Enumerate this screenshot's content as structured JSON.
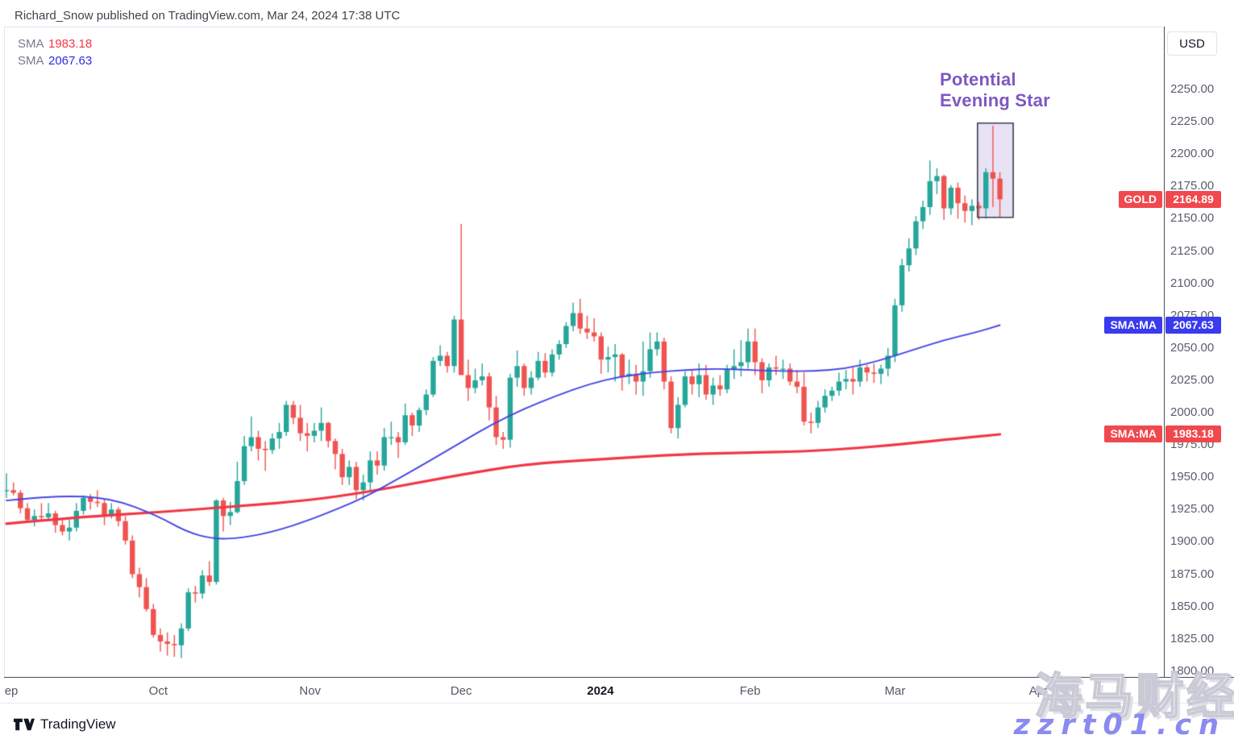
{
  "header": {
    "attribution": "Richard_Snow published on TradingView.com, Mar 24, 2024 17:38 UTC"
  },
  "legend": {
    "rows": [
      {
        "label": "SMA",
        "value": "1983.18",
        "color": "#f23645"
      },
      {
        "label": "SMA",
        "value": "2067.63",
        "color": "#2c2ce0"
      }
    ]
  },
  "annotation": {
    "line1": "Potential",
    "line2": "Evening Star",
    "color": "#7e57c2"
  },
  "price_axis": {
    "currency_button": "USD"
  },
  "price_labels": {
    "items": [
      {
        "id": "gold",
        "name": "GOLD",
        "value": "2164.89",
        "color": "#f0484d"
      },
      {
        "id": "sma-blue",
        "name": "SMA:MA",
        "value": "2067.63",
        "color": "#3a3aee"
      },
      {
        "id": "sma-red",
        "name": "SMA:MA",
        "value": "1983.18",
        "color": "#f0484d"
      }
    ]
  },
  "watermark": {
    "line1": "海马财经",
    "line2": "zzrt01.cn"
  },
  "footer": {
    "brand": "TradingView"
  },
  "chart_data": {
    "type": "candlestick",
    "symbol": "GOLD",
    "currency": "USD",
    "current_price": 2164.89,
    "colors": {
      "up": "#26a69a",
      "down": "#ef5350",
      "sma_red": "#f23645",
      "sma_blue": "#4545e5"
    },
    "y_axis": {
      "min": 1795,
      "max": 2299,
      "tick_step": 25,
      "ticks": [
        "2250.00",
        "2225.00",
        "2200.00",
        "2175.00",
        "2150.00",
        "2125.00",
        "2100.00",
        "2075.00",
        "2050.00",
        "2025.00",
        "2000.00",
        "1975.00",
        "1950.00",
        "1925.00",
        "1900.00",
        "1875.00",
        "1850.00",
        "1825.00",
        "1800.00"
      ]
    },
    "x_axis": {
      "labels": [
        {
          "text": "ep",
          "index": 0.7,
          "bold": false
        },
        {
          "text": "Oct",
          "index": 21.7,
          "bold": false
        },
        {
          "text": "Nov",
          "index": 43.4,
          "bold": false
        },
        {
          "text": "Dec",
          "index": 65.0,
          "bold": false
        },
        {
          "text": "2024",
          "index": 84.9,
          "bold": true
        },
        {
          "text": "Feb",
          "index": 106.3,
          "bold": false
        },
        {
          "text": "Mar",
          "index": 127.0,
          "bold": false
        },
        {
          "text": "Apr",
          "index": 147.5,
          "bold": false
        }
      ]
    },
    "highlight_box": {
      "start_index": 138.8,
      "end_index": 143.9,
      "price_low": 2151,
      "price_high": 2224,
      "fill": "rgba(103,58,183,0.15)",
      "border": "#3a3f4c",
      "label": "Potential Evening Star"
    },
    "overlays": [
      {
        "name": "SMA",
        "value": 1983.18,
        "color": "#f23645",
        "width": 3.2,
        "points": [
          [
            0,
            1914
          ],
          [
            10,
            1919
          ],
          [
            22,
            1923
          ],
          [
            34,
            1928
          ],
          [
            43,
            1932
          ],
          [
            51,
            1938
          ],
          [
            59,
            1946
          ],
          [
            65,
            1952
          ],
          [
            74,
            1960
          ],
          [
            85,
            1964
          ],
          [
            97,
            1968
          ],
          [
            106,
            1969
          ],
          [
            114,
            1970
          ],
          [
            120,
            1972
          ],
          [
            127,
            1975
          ],
          [
            134,
            1979
          ],
          [
            142,
            1983.18
          ]
        ]
      },
      {
        "name": "SMA",
        "value": 2067.63,
        "color": "#4545e5",
        "width": 1.9,
        "points": [
          [
            0,
            1932
          ],
          [
            7,
            1936
          ],
          [
            15,
            1934
          ],
          [
            21.7,
            1920
          ],
          [
            25.6,
            1908
          ],
          [
            29.6,
            1902
          ],
          [
            33.6,
            1903
          ],
          [
            38.3,
            1908
          ],
          [
            43.4,
            1917
          ],
          [
            47.5,
            1926
          ],
          [
            51,
            1934
          ],
          [
            54.4,
            1944
          ],
          [
            59,
            1958
          ],
          [
            65,
            1977
          ],
          [
            69.4,
            1991
          ],
          [
            74,
            2003
          ],
          [
            78.6,
            2013
          ],
          [
            83.2,
            2022
          ],
          [
            87.8,
            2028
          ],
          [
            92.4,
            2031
          ],
          [
            97,
            2033
          ],
          [
            101.6,
            2034
          ],
          [
            106.2,
            2033
          ],
          [
            110.8,
            2032
          ],
          [
            115.4,
            2032
          ],
          [
            120,
            2034
          ],
          [
            124.7,
            2040
          ],
          [
            129.3,
            2048
          ],
          [
            133.9,
            2056
          ],
          [
            138.5,
            2062
          ],
          [
            142,
            2067.63
          ]
        ]
      }
    ],
    "candles": [
      [
        "09-01",
        1940,
        1953,
        1934,
        1940
      ],
      [
        "09-04",
        1940,
        1946,
        1936,
        1938
      ],
      [
        "09-05",
        1938,
        1940,
        1922,
        1926
      ],
      [
        "09-06",
        1926,
        1930,
        1915,
        1917
      ],
      [
        "09-07",
        1917,
        1925,
        1912,
        1920
      ],
      [
        "09-08",
        1920,
        1930,
        1917,
        1919
      ],
      [
        "09-11",
        1919,
        1930,
        1916,
        1922
      ],
      [
        "09-12",
        1922,
        1924,
        1907,
        1913
      ],
      [
        "09-13",
        1913,
        1918,
        1905,
        1908
      ],
      [
        "09-14",
        1908,
        1917,
        1901,
        1911
      ],
      [
        "09-15",
        1911,
        1930,
        1908,
        1924
      ],
      [
        "09-18",
        1924,
        1936,
        1921,
        1934
      ],
      [
        "09-19",
        1934,
        1937,
        1925,
        1931
      ],
      [
        "09-20",
        1931,
        1940,
        1927,
        1930
      ],
      [
        "09-21",
        1930,
        1933,
        1913,
        1920
      ],
      [
        "09-22",
        1920,
        1930,
        1918,
        1925
      ],
      [
        "09-25",
        1925,
        1927,
        1912,
        1916
      ],
      [
        "09-26",
        1916,
        1920,
        1898,
        1901
      ],
      [
        "09-27",
        1901,
        1905,
        1872,
        1875
      ],
      [
        "09-28",
        1875,
        1880,
        1857,
        1865
      ],
      [
        "09-29",
        1865,
        1872,
        1846,
        1848
      ],
      [
        "10-02",
        1848,
        1852,
        1826,
        1828
      ],
      [
        "10-03",
        1828,
        1833,
        1815,
        1823
      ],
      [
        "10-04",
        1823,
        1830,
        1812,
        1821
      ],
      [
        "10-05",
        1821,
        1828,
        1811,
        1820
      ],
      [
        "10-06",
        1820,
        1837,
        1810,
        1833
      ],
      [
        "10-09",
        1833,
        1864,
        1831,
        1861
      ],
      [
        "10-10",
        1861,
        1866,
        1853,
        1860
      ],
      [
        "10-11",
        1860,
        1878,
        1856,
        1874
      ],
      [
        "10-12",
        1874,
        1885,
        1866,
        1869
      ],
      [
        "10-13",
        1869,
        1933,
        1867,
        1932
      ],
      [
        "10-16",
        1932,
        1934,
        1908,
        1920
      ],
      [
        "10-17",
        1920,
        1931,
        1913,
        1923
      ],
      [
        "10-18",
        1923,
        1962,
        1922,
        1947
      ],
      [
        "10-19",
        1947,
        1982,
        1944,
        1974
      ],
      [
        "10-20",
        1974,
        1997,
        1970,
        1981
      ],
      [
        "10-23",
        1981,
        1986,
        1963,
        1972
      ],
      [
        "10-24",
        1972,
        1978,
        1955,
        1971
      ],
      [
        "10-25",
        1971,
        1984,
        1968,
        1980
      ],
      [
        "10-26",
        1980,
        1992,
        1972,
        1985
      ],
      [
        "10-27",
        1985,
        2009,
        1982,
        2006
      ],
      [
        "10-30",
        2006,
        2009,
        1991,
        1996
      ],
      [
        "10-31",
        1996,
        2006,
        1978,
        1984
      ],
      [
        "11-01",
        1984,
        1992,
        1970,
        1982
      ],
      [
        "11-02",
        1982,
        1992,
        1977,
        1986
      ],
      [
        "11-03",
        1986,
        2004,
        1978,
        1992
      ],
      [
        "11-06",
        1992,
        1993,
        1973,
        1978
      ],
      [
        "11-07",
        1978,
        1980,
        1956,
        1968
      ],
      [
        "11-08",
        1968,
        1972,
        1944,
        1950
      ],
      [
        "11-09",
        1950,
        1963,
        1944,
        1958
      ],
      [
        "11-10",
        1958,
        1962,
        1933,
        1940
      ],
      [
        "11-13",
        1940,
        1952,
        1932,
        1946
      ],
      [
        "11-14",
        1946,
        1970,
        1940,
        1963
      ],
      [
        "11-15",
        1963,
        1970,
        1952,
        1959
      ],
      [
        "11-16",
        1959,
        1988,
        1955,
        1981
      ],
      [
        "11-17",
        1981,
        1993,
        1975,
        1981
      ],
      [
        "11-20",
        1981,
        1985,
        1965,
        1977
      ],
      [
        "11-21",
        1977,
        2007,
        1975,
        1998
      ],
      [
        "11-22",
        1998,
        2000,
        1982,
        1990
      ],
      [
        "11-24",
        1990,
        2004,
        1985,
        2002
      ],
      [
        "11-27",
        2002,
        2018,
        1998,
        2014
      ],
      [
        "11-28",
        2014,
        2043,
        2012,
        2040
      ],
      [
        "11-29",
        2040,
        2052,
        2036,
        2044
      ],
      [
        "11-30",
        2044,
        2047,
        2031,
        2036
      ],
      [
        "12-01",
        2036,
        2075,
        2031,
        2072
      ],
      [
        "12-04",
        2072,
        2146,
        2064,
        2029
      ],
      [
        "12-05",
        2029,
        2041,
        2009,
        2019
      ],
      [
        "12-06",
        2019,
        2034,
        2015,
        2025
      ],
      [
        "12-07",
        2025,
        2038,
        2021,
        2028
      ],
      [
        "12-08",
        2028,
        2031,
        1994,
        2004
      ],
      [
        "12-11",
        2004,
        2013,
        1975,
        1981
      ],
      [
        "12-12",
        1981,
        1985,
        1972,
        1979
      ],
      [
        "12-13",
        1979,
        2030,
        1973,
        2027
      ],
      [
        "12-14",
        2027,
        2048,
        2020,
        2036
      ],
      [
        "12-15",
        2036,
        2038,
        2013,
        2019
      ],
      [
        "12-18",
        2019,
        2032,
        2014,
        2027
      ],
      [
        "12-19",
        2027,
        2047,
        2025,
        2040
      ],
      [
        "12-20",
        2040,
        2046,
        2027,
        2031
      ],
      [
        "12-21",
        2031,
        2049,
        2028,
        2045
      ],
      [
        "12-22",
        2045,
        2056,
        2041,
        2053
      ],
      [
        "12-26",
        2053,
        2070,
        2050,
        2067
      ],
      [
        "12-27",
        2067,
        2085,
        2063,
        2077
      ],
      [
        "12-28",
        2077,
        2088,
        2061,
        2065
      ],
      [
        "12-29",
        2065,
        2075,
        2057,
        2062
      ],
      [
        "01-02",
        2062,
        2073,
        2055,
        2059
      ],
      [
        "01-03",
        2059,
        2062,
        2030,
        2041
      ],
      [
        "01-04",
        2041,
        2051,
        2031,
        2043
      ],
      [
        "01-05",
        2043,
        2053,
        2024,
        2045
      ],
      [
        "01-08",
        2045,
        2046,
        2017,
        2028
      ],
      [
        "01-09",
        2028,
        2041,
        2022,
        2030
      ],
      [
        "01-10",
        2030,
        2037,
        2014,
        2024
      ],
      [
        "01-11",
        2024,
        2055,
        2013,
        2032
      ],
      [
        "01-12",
        2032,
        2062,
        2027,
        2049
      ],
      [
        "01-15",
        2049,
        2062,
        2044,
        2055
      ],
      [
        "01-16",
        2055,
        2058,
        2018,
        2024
      ],
      [
        "01-17",
        2024,
        2028,
        1984,
        1988
      ],
      [
        "01-18",
        1988,
        2012,
        1980,
        2006
      ],
      [
        "01-19",
        2006,
        2032,
        2004,
        2028
      ],
      [
        "01-22",
        2028,
        2033,
        2014,
        2022
      ],
      [
        "01-23",
        2022,
        2038,
        2012,
        2029
      ],
      [
        "01-24",
        2029,
        2037,
        2010,
        2014
      ],
      [
        "01-25",
        2014,
        2027,
        2006,
        2021
      ],
      [
        "01-26",
        2021,
        2029,
        2013,
        2018
      ],
      [
        "01-29",
        2018,
        2037,
        2015,
        2033
      ],
      [
        "01-30",
        2033,
        2049,
        2026,
        2036
      ],
      [
        "01-31",
        2036,
        2056,
        2028,
        2039
      ],
      [
        "02-01",
        2039,
        2065,
        2034,
        2055
      ],
      [
        "02-02",
        2055,
        2065,
        2029,
        2039
      ],
      [
        "02-05",
        2039,
        2042,
        2015,
        2025
      ],
      [
        "02-06",
        2025,
        2038,
        2020,
        2035
      ],
      [
        "02-07",
        2035,
        2044,
        2029,
        2034
      ],
      [
        "02-08",
        2034,
        2041,
        2026,
        2034
      ],
      [
        "02-09",
        2034,
        2038,
        2021,
        2024
      ],
      [
        "02-12",
        2024,
        2033,
        2015,
        2020
      ],
      [
        "02-13",
        2020,
        2031,
        1990,
        1993
      ],
      [
        "02-14",
        1993,
        2000,
        1984,
        1992
      ],
      [
        "02-15",
        1992,
        2009,
        1988,
        2004
      ],
      [
        "02-16",
        2004,
        2018,
        2000,
        2013
      ],
      [
        "02-19",
        2013,
        2020,
        2009,
        2017
      ],
      [
        "02-20",
        2017,
        2031,
        2013,
        2024
      ],
      [
        "02-21",
        2024,
        2033,
        2018,
        2026
      ],
      [
        "02-22",
        2026,
        2035,
        2014,
        2024
      ],
      [
        "02-23",
        2024,
        2041,
        2020,
        2035
      ],
      [
        "02-26",
        2035,
        2037,
        2024,
        2031
      ],
      [
        "02-27",
        2031,
        2038,
        2023,
        2030
      ],
      [
        "02-28",
        2030,
        2037,
        2022,
        2034
      ],
      [
        "02-29",
        2034,
        2050,
        2028,
        2044
      ],
      [
        "03-01",
        2044,
        2088,
        2039,
        2083
      ],
      [
        "03-04",
        2083,
        2119,
        2078,
        2114
      ],
      [
        "03-05",
        2114,
        2135,
        2109,
        2127
      ],
      [
        "03-06",
        2127,
        2152,
        2122,
        2148
      ],
      [
        "03-07",
        2148,
        2164,
        2142,
        2159
      ],
      [
        "03-08",
        2159,
        2195,
        2153,
        2179
      ],
      [
        "03-11",
        2179,
        2189,
        2169,
        2183
      ],
      [
        "03-12",
        2183,
        2184,
        2149,
        2158
      ],
      [
        "03-13",
        2158,
        2176,
        2153,
        2174
      ],
      [
        "03-14",
        2174,
        2178,
        2150,
        2162
      ],
      [
        "03-15",
        2162,
        2168,
        2147,
        2156
      ],
      [
        "03-18",
        2156,
        2165,
        2145,
        2160
      ],
      [
        "03-19",
        2160,
        2163,
        2149,
        2158
      ],
      [
        "03-20",
        2158,
        2189,
        2150,
        2186
      ],
      [
        "03-21",
        2186,
        2222,
        2159,
        2181
      ],
      [
        "03-22",
        2181,
        2186,
        2151,
        2165
      ]
    ]
  }
}
